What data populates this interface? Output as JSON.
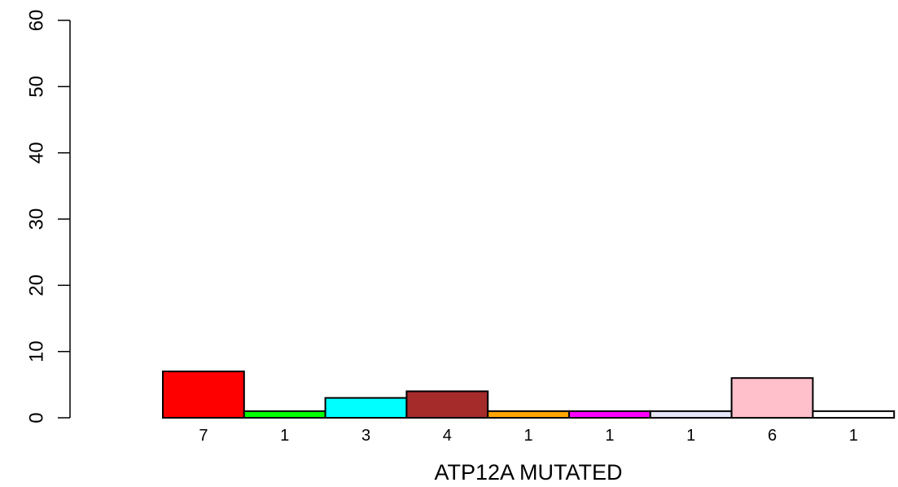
{
  "chart_data": {
    "type": "bar",
    "title": "",
    "xlabel": "ATP12A MUTATED",
    "ylabel": "",
    "ylim": [
      0,
      60
    ],
    "yticks": [
      "0",
      "10",
      "20",
      "30",
      "40",
      "50",
      "60"
    ],
    "grid": false,
    "bars": [
      {
        "value": 7,
        "label": "7",
        "color": "#ff0000"
      },
      {
        "value": 1,
        "label": "1",
        "color": "#00ff00"
      },
      {
        "value": 3,
        "label": "3",
        "color": "#00ffff"
      },
      {
        "value": 4,
        "label": "4",
        "color": "#a52a2a"
      },
      {
        "value": 1,
        "label": "1",
        "color": "#ffa500"
      },
      {
        "value": 1,
        "label": "1",
        "color": "#ff00ff"
      },
      {
        "value": 1,
        "label": "1",
        "color": "#e6e6fa"
      },
      {
        "value": 6,
        "label": "6",
        "color": "#ffc0cb"
      },
      {
        "value": 1,
        "label": "1",
        "color": "#ffffff"
      }
    ]
  }
}
